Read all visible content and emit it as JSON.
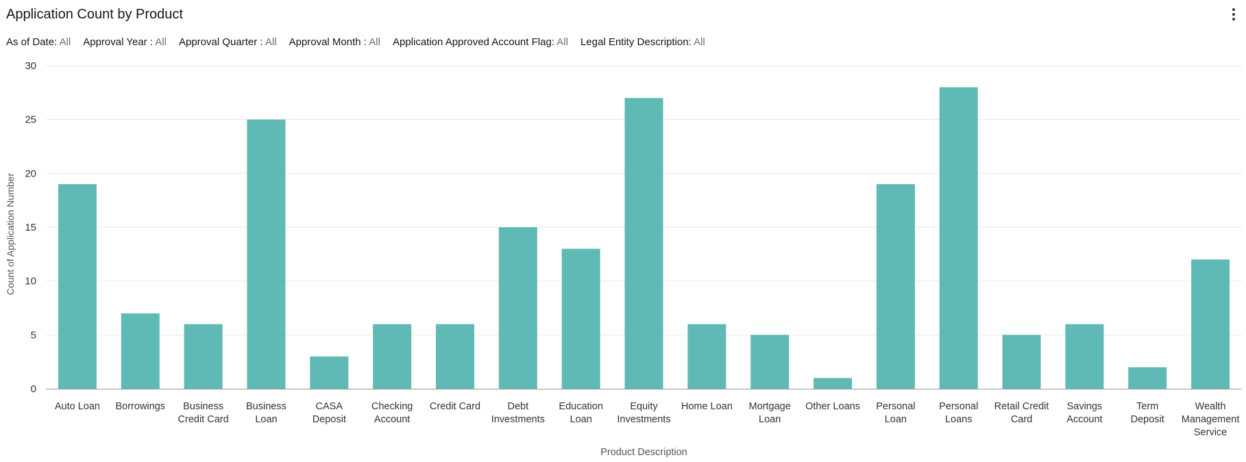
{
  "header": {
    "title": "Application Count by Product",
    "menu_icon": "kebab-menu-icon"
  },
  "filters": [
    {
      "label": "As of Date:",
      "value": "All"
    },
    {
      "label": "Approval Year :",
      "value": "All"
    },
    {
      "label": "Approval Quarter :",
      "value": "All"
    },
    {
      "label": "Approval Month :",
      "value": "All"
    },
    {
      "label": "Application Approved Account Flag:",
      "value": "All"
    },
    {
      "label": "Legal Entity Description:",
      "value": "All"
    }
  ],
  "chart_data": {
    "type": "bar",
    "title": "Application Count by Product",
    "xlabel": "Product Description",
    "ylabel": "Count of Application Number",
    "ylim": [
      0,
      30
    ],
    "yticks": [
      0,
      5,
      10,
      15,
      20,
      25,
      30
    ],
    "grid": true,
    "bar_color": "#5fb9b4",
    "categories": [
      "Auto Loan",
      "Borrowings",
      "Business Credit Card",
      "Business Loan",
      "CASA Deposit",
      "Checking Account",
      "Credit Card",
      "Debt Investments",
      "Education Loan",
      "Equity Investments",
      "Home Loan",
      "Mortgage Loan",
      "Other Loans",
      "Personal Loan",
      "Personal Loans",
      "Retail Credit Card",
      "Savings Account",
      "Term Deposit",
      "Wealth Management Service"
    ],
    "category_label_lines": [
      [
        "Auto Loan"
      ],
      [
        "Borrowings"
      ],
      [
        "Business",
        "Credit Card"
      ],
      [
        "Business",
        "Loan"
      ],
      [
        "CASA",
        "Deposit"
      ],
      [
        "Checking",
        "Account"
      ],
      [
        "Credit Card"
      ],
      [
        "Debt",
        "Investments"
      ],
      [
        "Education",
        "Loan"
      ],
      [
        "Equity",
        "Investments"
      ],
      [
        "Home Loan"
      ],
      [
        "Mortgage",
        "Loan"
      ],
      [
        "Other Loans"
      ],
      [
        "Personal",
        "Loan"
      ],
      [
        "Personal",
        "Loans"
      ],
      [
        "Retail Credit",
        "Card"
      ],
      [
        "Savings",
        "Account"
      ],
      [
        "Term",
        "Deposit"
      ],
      [
        "Wealth",
        "Management",
        "Service"
      ]
    ],
    "values": [
      19,
      7,
      6,
      25,
      3,
      6,
      6,
      15,
      13,
      27,
      6,
      5,
      1,
      19,
      28,
      5,
      6,
      2,
      12
    ]
  }
}
